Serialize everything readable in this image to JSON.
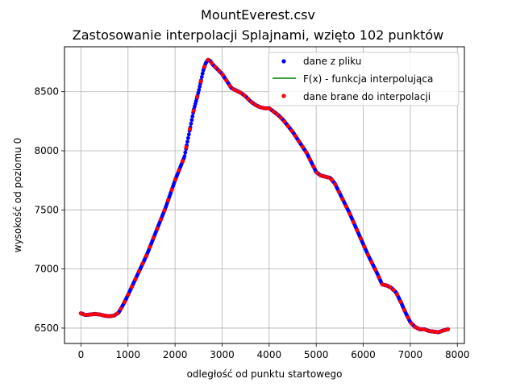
{
  "figure": {
    "title_line1": "MountEverest.csv",
    "title_line2": "Zastosowanie interpolacji Splajnami, wzięto 102 punktów"
  },
  "chart_data": {
    "type": "line",
    "title": "MountEverest.csv",
    "subtitle": "Zastosowanie interpolacji Splajnami, wzięto 102 punktów",
    "xlabel": "odległość od punktu startowego",
    "ylabel": "wysokość od poziomu 0",
    "xlim": [
      -350,
      8150
    ],
    "ylim": [
      6370,
      8880
    ],
    "xticks": [
      0,
      1000,
      2000,
      3000,
      4000,
      5000,
      6000,
      7000,
      8000
    ],
    "yticks": [
      6500,
      7000,
      7500,
      8000,
      8500
    ],
    "grid": true,
    "legend_position": "top-right",
    "legend": [
      "dane z pliku",
      "F(x) - funkcja interpolująca",
      "dane brane do interpolacji"
    ],
    "colors": {
      "data": "#0000ff",
      "interp": "#008000",
      "nodes": "#ff0000"
    },
    "profile": {
      "x": [
        0,
        100,
        200,
        300,
        400,
        500,
        600,
        700,
        800,
        900,
        1000,
        1200,
        1400,
        1600,
        1800,
        2000,
        2100,
        2200,
        2300,
        2400,
        2500,
        2600,
        2650,
        2700,
        2750,
        2800,
        2900,
        3000,
        3100,
        3200,
        3300,
        3400,
        3500,
        3600,
        3700,
        3800,
        3900,
        4000,
        4200,
        4300,
        4400,
        4500,
        4600,
        4700,
        4800,
        4900,
        5000,
        5100,
        5200,
        5300,
        5400,
        5500,
        5600,
        5700,
        5800,
        5900,
        6000,
        6100,
        6200,
        6300,
        6400,
        6500,
        6600,
        6700,
        6800,
        6900,
        7000,
        7100,
        7200,
        7300,
        7400,
        7500,
        7600,
        7700,
        7800
      ],
      "y": [
        6625,
        6610,
        6615,
        6620,
        6615,
        6605,
        6600,
        6605,
        6630,
        6700,
        6780,
        6950,
        7120,
        7320,
        7520,
        7750,
        7850,
        7950,
        8150,
        8350,
        8500,
        8680,
        8740,
        8770,
        8760,
        8730,
        8690,
        8650,
        8590,
        8530,
        8510,
        8490,
        8460,
        8420,
        8390,
        8370,
        8360,
        8360,
        8300,
        8260,
        8210,
        8160,
        8100,
        8040,
        7980,
        7900,
        7820,
        7790,
        7780,
        7770,
        7720,
        7640,
        7560,
        7480,
        7390,
        7300,
        7210,
        7120,
        7040,
        6960,
        6870,
        6860,
        6840,
        6800,
        6720,
        6630,
        6550,
        6510,
        6490,
        6490,
        6475,
        6470,
        6465,
        6480,
        6490
      ]
    }
  }
}
